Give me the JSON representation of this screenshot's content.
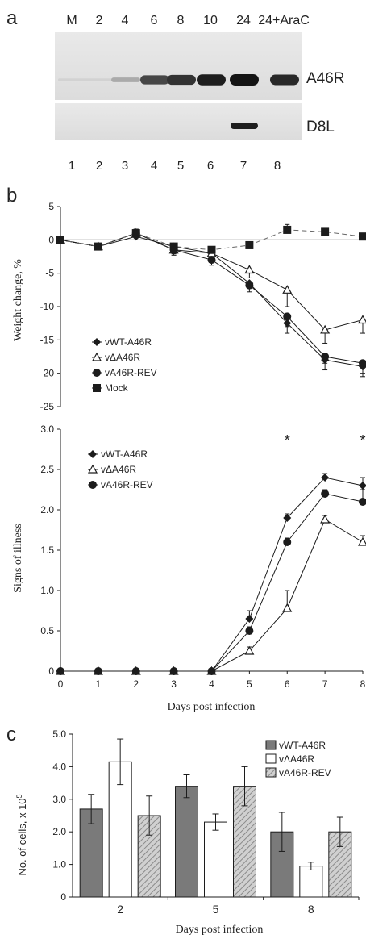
{
  "panel_labels": {
    "a": "a",
    "b": "b",
    "c": "c"
  },
  "blot": {
    "lane_headers": [
      "M",
      "2",
      "4",
      "6",
      "8",
      "10",
      "24",
      "24+AraC"
    ],
    "lane_numbers": [
      "1",
      "2",
      "3",
      "4",
      "5",
      "6",
      "7",
      "8"
    ],
    "band_labels": {
      "top": "A46R",
      "bottom": "D8L"
    },
    "a46r_intensity": [
      0.05,
      0.05,
      0.25,
      0.75,
      0.85,
      0.95,
      1.0,
      0.9
    ],
    "d8l_intensity": [
      0,
      0,
      0,
      0,
      0,
      0,
      0.95,
      0
    ]
  },
  "chart_data": [
    {
      "type": "line",
      "ylabel": "Weight change, %",
      "ylim": [
        -25,
        5
      ],
      "yticks": [
        5,
        0,
        -5,
        -10,
        -15,
        -20,
        -25
      ],
      "xlim": [
        0,
        8
      ],
      "x": [
        0,
        1,
        2,
        3,
        4,
        5,
        6,
        7,
        8
      ],
      "legend": "left",
      "series": [
        {
          "name": "vWT-A46R",
          "marker": "diamond",
          "values": [
            0,
            -1,
            0.5,
            -1,
            -2,
            -6.5,
            -12.5,
            -18,
            -19
          ],
          "err": [
            0,
            0.3,
            0.8,
            0.5,
            0.8,
            1,
            1.5,
            1.5,
            1.5
          ]
        },
        {
          "name": "vΔA46R",
          "marker": "triangle-open",
          "values": [
            0,
            -1,
            1,
            -1.5,
            -2,
            -4.5,
            -7.5,
            -13.5,
            -12
          ],
          "err": [
            0,
            0.3,
            0.6,
            0.6,
            0.8,
            1.2,
            2.5,
            2,
            2
          ]
        },
        {
          "name": "vA46R-REV",
          "marker": "circle",
          "values": [
            0,
            -1,
            1,
            -1.5,
            -3,
            -6.8,
            -11.5,
            -17.5,
            -18.5
          ],
          "err": [
            0,
            0.3,
            0.6,
            0.8,
            0.8,
            1,
            1.5,
            1,
            1.5
          ]
        },
        {
          "name": "Mock",
          "marker": "square",
          "values": [
            0,
            -1,
            1,
            -1,
            -1.5,
            -0.8,
            1.5,
            1.2,
            0.5
          ],
          "err": [
            0,
            0.3,
            0.5,
            0.5,
            0.5,
            0.5,
            0.8,
            0.5,
            0.5
          ]
        }
      ]
    },
    {
      "type": "line",
      "ylabel": "Signs of illness",
      "xlabel": "Days post infection",
      "ylim": [
        0,
        3.0
      ],
      "yticks": [
        "0",
        "0.5",
        "1.0",
        "1.5",
        "2.0",
        "2.5",
        "3.0"
      ],
      "xlim": [
        0,
        8
      ],
      "x": [
        0,
        1,
        2,
        3,
        4,
        5,
        6,
        7,
        8
      ],
      "legend": "top-left",
      "annotations": [
        {
          "text": "*",
          "x": 6
        },
        {
          "text": "*",
          "x": 8
        }
      ],
      "series": [
        {
          "name": "vWT-A46R",
          "marker": "diamond",
          "values": [
            0,
            0,
            0,
            0,
            0,
            0.65,
            1.9,
            2.4,
            2.3
          ],
          "err": [
            0,
            0,
            0,
            0,
            0,
            0.1,
            0.05,
            0.05,
            0.1
          ]
        },
        {
          "name": "vΔA46R",
          "marker": "triangle-open",
          "values": [
            0,
            0,
            0,
            0,
            0,
            0.25,
            0.78,
            1.88,
            1.6
          ],
          "err": [
            0,
            0,
            0,
            0,
            0,
            0.05,
            0.22,
            0.05,
            0.08
          ]
        },
        {
          "name": "vA46R-REV",
          "marker": "circle",
          "values": [
            0,
            0,
            0,
            0,
            0,
            0.5,
            1.6,
            2.2,
            2.1
          ],
          "err": [
            0,
            0,
            0,
            0,
            0,
            0.05,
            0.05,
            0.05,
            0.15
          ]
        }
      ]
    },
    {
      "type": "bar",
      "ylabel": "No. of cells, x 10",
      "ylabel_sup": "5",
      "xlabel": "Days post infection",
      "categories": [
        "2",
        "5",
        "8"
      ],
      "ylim": [
        0,
        5.0
      ],
      "yticks": [
        "0",
        "1.0",
        "2.0",
        "3.0",
        "4.0",
        "5.0"
      ],
      "legend": "top-right",
      "series": [
        {
          "name": "vWT-A46R",
          "fill": "gray",
          "values": [
            2.7,
            3.4,
            2.0
          ],
          "err": [
            0.45,
            0.35,
            0.6
          ]
        },
        {
          "name": "vΔA46R",
          "fill": "white",
          "values": [
            4.15,
            2.3,
            0.95
          ],
          "err": [
            0.7,
            0.25,
            0.12
          ]
        },
        {
          "name": "vA46R-REV",
          "fill": "hatched",
          "values": [
            2.5,
            3.4,
            2.0
          ],
          "err": [
            0.6,
            0.6,
            0.45
          ]
        }
      ]
    }
  ],
  "colors": {
    "ink": "#1c1c1c",
    "grid_gray": "#8c8c8c",
    "bar_gray": "#7a7a7a",
    "blot_bg": "#e3e3e3"
  }
}
